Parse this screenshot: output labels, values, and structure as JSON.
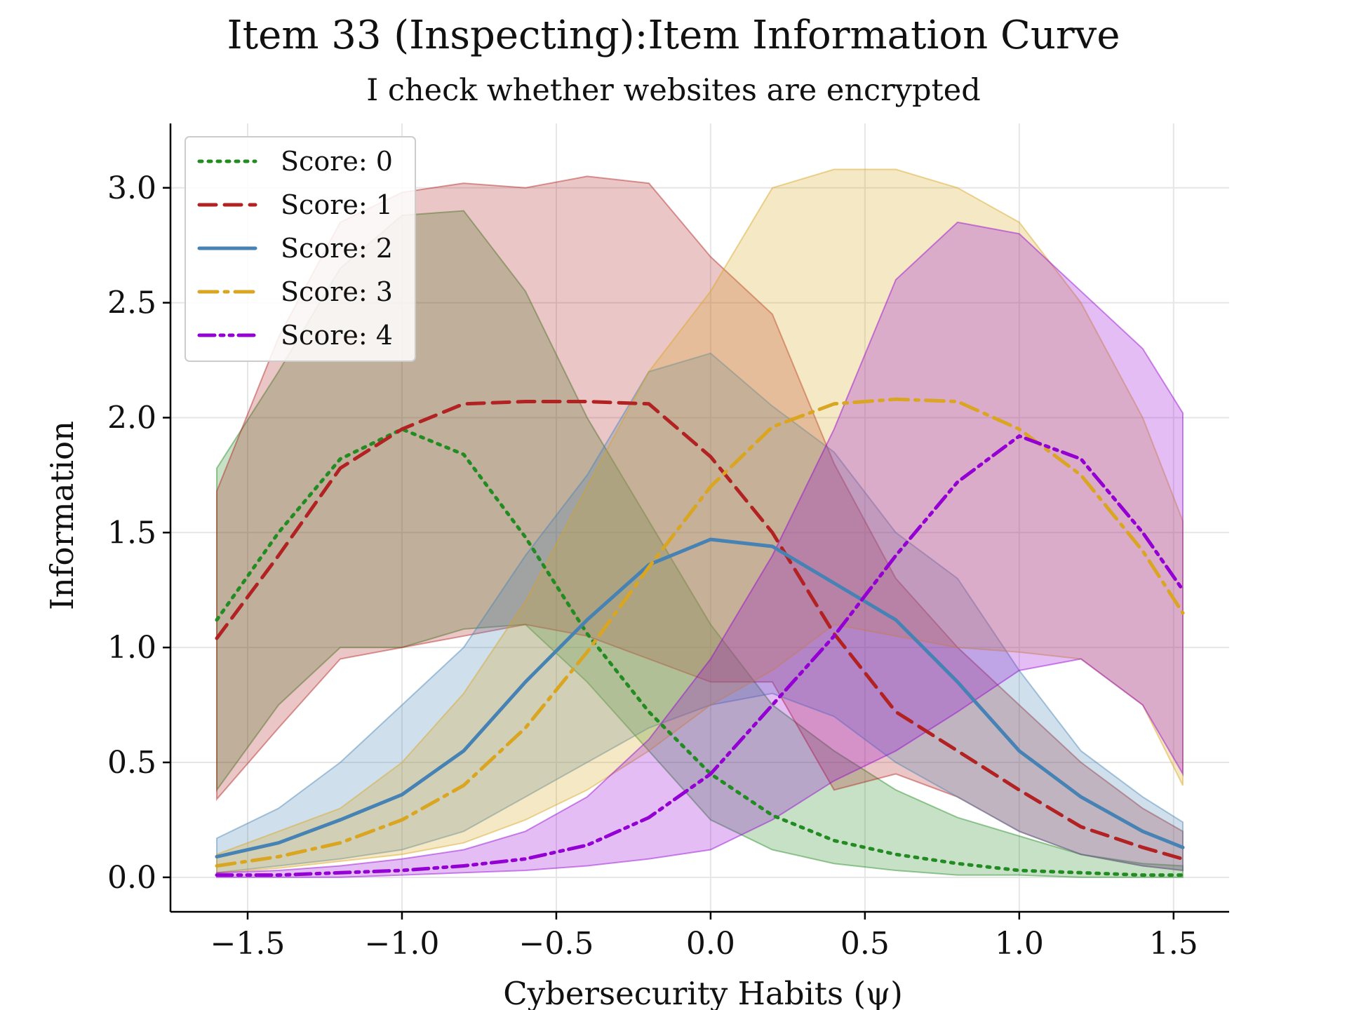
{
  "chart_data": {
    "type": "line",
    "title": "Item 33 (Inspecting):Item Information Curve",
    "subtitle": "I check whether websites are encrypted",
    "xlabel": "Cybersecurity Habits (ψ)",
    "ylabel": "Information",
    "xlim": [
      -1.75,
      1.68
    ],
    "ylim": [
      -0.15,
      3.28
    ],
    "xticks": [
      -1.5,
      -1.0,
      -0.5,
      0.0,
      0.5,
      1.0,
      1.5
    ],
    "xtick_labels": [
      "−1.5",
      "−1.0",
      "−0.5",
      "0.0",
      "0.5",
      "1.0",
      "1.5"
    ],
    "yticks": [
      0.0,
      0.5,
      1.0,
      1.5,
      2.0,
      2.5,
      3.0
    ],
    "ytick_labels": [
      "0.0",
      "0.5",
      "1.0",
      "1.5",
      "2.0",
      "2.5",
      "3.0"
    ],
    "grid": true,
    "legend_position": "top-left",
    "x": [
      -1.6,
      -1.4,
      -1.2,
      -1.0,
      -0.8,
      -0.6,
      -0.4,
      -0.2,
      0.0,
      0.2,
      0.4,
      0.6,
      0.8,
      1.0,
      1.2,
      1.4,
      1.53
    ],
    "series": [
      {
        "name": "Score: 0",
        "color": "#228B22",
        "dash": "dotted",
        "values": [
          1.12,
          1.5,
          1.82,
          1.95,
          1.84,
          1.48,
          1.06,
          0.72,
          0.45,
          0.27,
          0.16,
          0.1,
          0.06,
          0.03,
          0.02,
          0.01,
          0.01
        ],
        "band_upper": [
          1.78,
          2.2,
          2.65,
          2.88,
          2.9,
          2.55,
          2.0,
          1.55,
          1.1,
          0.75,
          0.55,
          0.38,
          0.26,
          0.18,
          0.1,
          0.06,
          0.05
        ],
        "band_lower": [
          0.38,
          0.75,
          1.0,
          1.0,
          1.08,
          1.1,
          0.85,
          0.55,
          0.25,
          0.12,
          0.06,
          0.03,
          0.01,
          0.01,
          0.0,
          0.0,
          0.0
        ]
      },
      {
        "name": "Score: 1",
        "color": "#B22222",
        "dash": "dashed",
        "values": [
          1.04,
          1.4,
          1.78,
          1.95,
          2.06,
          2.07,
          2.07,
          2.06,
          1.83,
          1.5,
          1.06,
          0.72,
          0.55,
          0.38,
          0.22,
          0.13,
          0.08
        ],
        "band_upper": [
          1.68,
          2.35,
          2.85,
          2.98,
          3.02,
          3.0,
          3.05,
          3.02,
          2.7,
          2.45,
          1.8,
          1.3,
          1.0,
          0.75,
          0.5,
          0.3,
          0.2
        ],
        "band_lower": [
          0.34,
          0.65,
          0.95,
          1.0,
          1.05,
          1.1,
          1.05,
          0.95,
          0.85,
          0.85,
          0.38,
          0.45,
          0.35,
          0.2,
          0.1,
          0.05,
          0.03
        ]
      },
      {
        "name": "Score: 2",
        "color": "#4682B4",
        "dash": "solid",
        "values": [
          0.09,
          0.15,
          0.25,
          0.36,
          0.55,
          0.85,
          1.12,
          1.36,
          1.47,
          1.44,
          1.28,
          1.12,
          0.85,
          0.55,
          0.35,
          0.2,
          0.13
        ],
        "band_upper": [
          0.17,
          0.3,
          0.5,
          0.75,
          1.0,
          1.4,
          1.75,
          2.2,
          2.28,
          2.05,
          1.85,
          1.5,
          1.3,
          0.9,
          0.55,
          0.35,
          0.24
        ],
        "band_lower": [
          0.02,
          0.05,
          0.08,
          0.12,
          0.2,
          0.35,
          0.5,
          0.65,
          0.75,
          0.8,
          0.7,
          0.5,
          0.35,
          0.2,
          0.1,
          0.05,
          0.03
        ]
      },
      {
        "name": "Score: 3",
        "color": "#DAA520",
        "dash": "dashdot",
        "values": [
          0.05,
          0.09,
          0.15,
          0.25,
          0.4,
          0.65,
          0.98,
          1.35,
          1.7,
          1.96,
          2.06,
          2.08,
          2.07,
          1.95,
          1.75,
          1.42,
          1.15
        ],
        "band_upper": [
          0.1,
          0.2,
          0.3,
          0.5,
          0.8,
          1.2,
          1.7,
          2.2,
          2.55,
          3.0,
          3.08,
          3.08,
          3.0,
          2.85,
          2.5,
          2.0,
          1.55
        ],
        "band_lower": [
          0.02,
          0.04,
          0.07,
          0.1,
          0.15,
          0.25,
          0.38,
          0.55,
          0.75,
          0.9,
          1.1,
          1.05,
          1.0,
          0.98,
          0.95,
          0.75,
          0.4
        ]
      },
      {
        "name": "Score: 4",
        "color": "#9400D3",
        "dash": "dashdotdot",
        "values": [
          0.01,
          0.01,
          0.02,
          0.03,
          0.05,
          0.08,
          0.14,
          0.26,
          0.45,
          0.75,
          1.05,
          1.4,
          1.72,
          1.92,
          1.82,
          1.5,
          1.25
        ],
        "band_upper": [
          0.02,
          0.03,
          0.05,
          0.08,
          0.12,
          0.2,
          0.35,
          0.6,
          0.95,
          1.4,
          1.95,
          2.6,
          2.85,
          2.8,
          2.55,
          2.3,
          2.02
        ],
        "band_lower": [
          0.0,
          0.0,
          0.0,
          0.01,
          0.02,
          0.03,
          0.05,
          0.08,
          0.12,
          0.25,
          0.42,
          0.55,
          0.72,
          0.9,
          0.95,
          0.75,
          0.45
        ]
      }
    ]
  }
}
